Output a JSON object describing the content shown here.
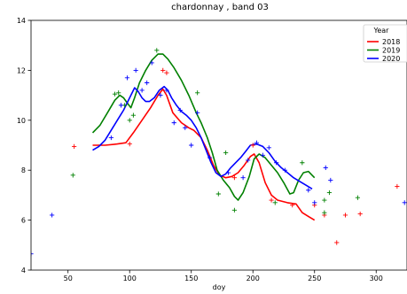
{
  "chart_data": {
    "type": "line",
    "title": "chardonnay ,  band 03",
    "xlabel": "doy",
    "ylabel": "",
    "xlim": [
      20,
      325
    ],
    "ylim": [
      4,
      14
    ],
    "x_ticks": [
      50,
      100,
      150,
      200,
      250,
      300
    ],
    "y_ticks": [
      4,
      6,
      8,
      10,
      12,
      14
    ],
    "grid": false,
    "legend": {
      "title": "Year",
      "placement": "top-right"
    },
    "series": [
      {
        "name": "2018",
        "color": "#ff0000",
        "line": [
          [
            70,
            9.0
          ],
          [
            80,
            9.0
          ],
          [
            90,
            9.05
          ],
          [
            97,
            9.1
          ],
          [
            103,
            9.5
          ],
          [
            110,
            10.0
          ],
          [
            117,
            10.5
          ],
          [
            123,
            11.0
          ],
          [
            127,
            11.25
          ],
          [
            130,
            11.0
          ],
          [
            135,
            10.3
          ],
          [
            142,
            9.9
          ],
          [
            148,
            9.7
          ],
          [
            152,
            9.6
          ],
          [
            158,
            9.3
          ],
          [
            163,
            8.8
          ],
          [
            168,
            8.2
          ],
          [
            173,
            7.8
          ],
          [
            178,
            7.7
          ],
          [
            183,
            7.75
          ],
          [
            188,
            7.9
          ],
          [
            193,
            8.2
          ],
          [
            198,
            8.55
          ],
          [
            201,
            8.65
          ],
          [
            205,
            8.3
          ],
          [
            210,
            7.5
          ],
          [
            215,
            7.0
          ],
          [
            220,
            6.8
          ],
          [
            228,
            6.7
          ],
          [
            235,
            6.65
          ],
          [
            240,
            6.3
          ],
          [
            245,
            6.15
          ],
          [
            250,
            6.0
          ]
        ],
        "points": [
          [
            55,
            8.95
          ],
          [
            100,
            9.05
          ],
          [
            127,
            12.0
          ],
          [
            130,
            11.9
          ],
          [
            185,
            7.7
          ],
          [
            200,
            9.0
          ],
          [
            215,
            6.8
          ],
          [
            232,
            6.6
          ],
          [
            250,
            6.6
          ],
          [
            258,
            6.2
          ],
          [
            268,
            5.1
          ],
          [
            275,
            6.2
          ],
          [
            287,
            6.25
          ],
          [
            317,
            7.35
          ]
        ]
      },
      {
        "name": "2019",
        "color": "#008000",
        "line": [
          [
            70,
            9.5
          ],
          [
            76,
            9.8
          ],
          [
            82,
            10.3
          ],
          [
            88,
            10.8
          ],
          [
            92,
            11.0
          ],
          [
            95,
            10.9
          ],
          [
            98,
            10.7
          ],
          [
            101,
            10.5
          ],
          [
            104,
            10.9
          ],
          [
            108,
            11.5
          ],
          [
            113,
            12.0
          ],
          [
            118,
            12.4
          ],
          [
            123,
            12.65
          ],
          [
            127,
            12.65
          ],
          [
            131,
            12.45
          ],
          [
            136,
            12.1
          ],
          [
            142,
            11.6
          ],
          [
            148,
            11.0
          ],
          [
            154,
            10.3
          ],
          [
            158,
            9.9
          ],
          [
            163,
            9.3
          ],
          [
            167,
            8.7
          ],
          [
            171,
            8.0
          ],
          [
            176,
            7.6
          ],
          [
            181,
            7.3
          ],
          [
            185,
            6.95
          ],
          [
            188,
            6.8
          ],
          [
            192,
            7.1
          ],
          [
            197,
            7.75
          ],
          [
            201,
            8.45
          ],
          [
            205,
            8.65
          ],
          [
            210,
            8.5
          ],
          [
            215,
            8.2
          ],
          [
            220,
            7.9
          ],
          [
            225,
            7.5
          ],
          [
            230,
            7.05
          ],
          [
            233,
            7.1
          ],
          [
            237,
            7.6
          ],
          [
            241,
            7.9
          ],
          [
            245,
            7.95
          ],
          [
            250,
            7.7
          ]
        ],
        "points": [
          [
            54,
            7.8
          ],
          [
            88,
            11.05
          ],
          [
            91,
            11.1
          ],
          [
            96,
            10.6
          ],
          [
            100,
            10.0
          ],
          [
            103,
            10.2
          ],
          [
            122,
            12.8
          ],
          [
            155,
            11.1
          ],
          [
            172,
            7.05
          ],
          [
            178,
            8.7
          ],
          [
            185,
            6.4
          ],
          [
            218,
            6.7
          ],
          [
            240,
            8.3
          ],
          [
            258,
            6.3
          ],
          [
            262,
            7.1
          ],
          [
            258,
            6.8
          ],
          [
            285,
            6.9
          ]
        ]
      },
      {
        "name": "2020",
        "color": "#0000ff",
        "line": [
          [
            70,
            8.8
          ],
          [
            75,
            8.95
          ],
          [
            80,
            9.2
          ],
          [
            85,
            9.6
          ],
          [
            90,
            10.0
          ],
          [
            95,
            10.4
          ],
          [
            98,
            10.7
          ],
          [
            101,
            11.0
          ],
          [
            104,
            11.3
          ],
          [
            107,
            11.15
          ],
          [
            110,
            10.9
          ],
          [
            113,
            10.75
          ],
          [
            116,
            10.75
          ],
          [
            120,
            10.9
          ],
          [
            124,
            11.2
          ],
          [
            128,
            11.35
          ],
          [
            131,
            11.2
          ],
          [
            134,
            10.9
          ],
          [
            138,
            10.6
          ],
          [
            142,
            10.35
          ],
          [
            146,
            10.2
          ],
          [
            150,
            10.0
          ],
          [
            154,
            9.7
          ],
          [
            158,
            9.3
          ],
          [
            162,
            8.8
          ],
          [
            166,
            8.3
          ],
          [
            170,
            7.9
          ],
          [
            174,
            7.75
          ],
          [
            178,
            7.85
          ],
          [
            182,
            8.1
          ],
          [
            186,
            8.3
          ],
          [
            190,
            8.5
          ],
          [
            194,
            8.75
          ],
          [
            198,
            9.0
          ],
          [
            203,
            9.05
          ],
          [
            208,
            8.95
          ],
          [
            213,
            8.7
          ],
          [
            218,
            8.35
          ],
          [
            223,
            8.1
          ],
          [
            228,
            7.9
          ],
          [
            233,
            7.7
          ],
          [
            238,
            7.55
          ],
          [
            243,
            7.4
          ],
          [
            248,
            7.25
          ]
        ],
        "points": [
          [
            20,
            4.65
          ],
          [
            37,
            6.2
          ],
          [
            85,
            9.3
          ],
          [
            93,
            10.6
          ],
          [
            98,
            11.7
          ],
          [
            105,
            12.0
          ],
          [
            110,
            11.2
          ],
          [
            114,
            11.5
          ],
          [
            118,
            12.3
          ],
          [
            125,
            11.0
          ],
          [
            130,
            11.2
          ],
          [
            136,
            9.9
          ],
          [
            141,
            10.4
          ],
          [
            145,
            9.7
          ],
          [
            150,
            9.0
          ],
          [
            155,
            10.3
          ],
          [
            165,
            8.5
          ],
          [
            180,
            7.9
          ],
          [
            192,
            7.7
          ],
          [
            196,
            8.4
          ],
          [
            203,
            9.1
          ],
          [
            208,
            8.6
          ],
          [
            213,
            8.9
          ],
          [
            219,
            8.3
          ],
          [
            226,
            8.0
          ],
          [
            245,
            7.2
          ],
          [
            250,
            6.7
          ],
          [
            259,
            8.1
          ],
          [
            263,
            7.6
          ],
          [
            323,
            6.7
          ]
        ]
      }
    ]
  }
}
